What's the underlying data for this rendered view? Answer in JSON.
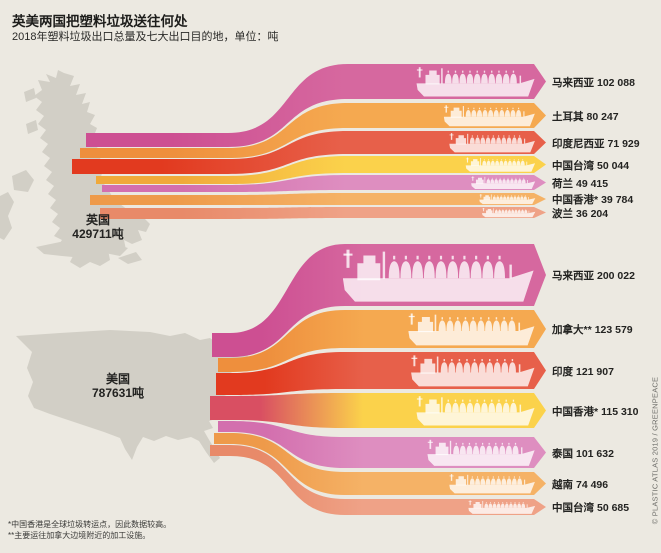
{
  "title": "英美两国把塑料垃圾送往何处",
  "subtitle": "2018年塑料垃圾出口总量及七大出口目的地，单位：吨",
  "footnotes": [
    "*中国香港是全球垃圾转运点，因此数据较高。",
    "**主要运往加拿大边境附近的加工设施。"
  ],
  "credit": "© PLASTIC ATLAS 2019 / GREENPEACE",
  "colors": {
    "background": "#ece9e1",
    "map": "#d2cfc6",
    "text": "#232321"
  },
  "chart_data": {
    "type": "sankey",
    "unit": "吨",
    "sources": [
      {
        "id": "uk",
        "name": "英国",
        "total": 429711,
        "total_label": "429711吨",
        "destinations": [
          {
            "id": "malaysia",
            "label": "马来西亚",
            "value": 102088,
            "value_label": "102 088",
            "color": "#d6689f",
            "color_deep": "#cd4f92"
          },
          {
            "id": "turkey",
            "label": "土耳其",
            "value": 80247,
            "value_label": "80 247",
            "color": "#f5a950",
            "color_deep": "#ee8f3d"
          },
          {
            "id": "indonesia",
            "label": "印度尼西亚",
            "value": 71929,
            "value_label": "71 929",
            "color": "#e7604a",
            "color_deep": "#e23a1f"
          },
          {
            "id": "taiwan-cn",
            "label": "中国台湾",
            "value": 50044,
            "value_label": "50 044",
            "color": "#fbd24b",
            "color_deep": "#f0a93a"
          },
          {
            "id": "netherlands",
            "label": "荷兰",
            "value": 49415,
            "value_label": "49 415",
            "color": "#de8ec0",
            "color_deep": "#d36fae"
          },
          {
            "id": "hong-kong-cn",
            "label": "中国香港*",
            "value": 39784,
            "value_label": "39 784",
            "color": "#f5b266",
            "color_deep": "#ee9a4a"
          },
          {
            "id": "poland",
            "label": "波兰",
            "value": 36204,
            "value_label": "36 204",
            "color": "#efa287",
            "color_deep": "#e88a69"
          }
        ]
      },
      {
        "id": "us",
        "name": "美国",
        "total": 787631,
        "total_label": "787631吨",
        "destinations": [
          {
            "id": "malaysia",
            "label": "马来西亚",
            "value": 200022,
            "value_label": "200 022",
            "color": "#d6689f",
            "color_deep": "#cd4f92"
          },
          {
            "id": "canada",
            "label": "加拿大**",
            "value": 123579,
            "value_label": "123 579",
            "color": "#f5a950",
            "color_deep": "#ee8f3d"
          },
          {
            "id": "india",
            "label": "印度",
            "value": 121907,
            "value_label": "121 907",
            "color": "#e7604a",
            "color_deep": "#e23a1f"
          },
          {
            "id": "hong-kong-cn",
            "label": "中国香港*",
            "value": 115310,
            "value_label": "115 310",
            "color": "#fbd24b",
            "color_deep": "#d94f62"
          },
          {
            "id": "thailand",
            "label": "泰国",
            "value": 101632,
            "value_label": "101 632",
            "color": "#de8ec0",
            "color_deep": "#d36fae"
          },
          {
            "id": "vietnam",
            "label": "越南",
            "value": 74496,
            "value_label": "74 496",
            "color": "#f5b266",
            "color_deep": "#ee9a4a"
          },
          {
            "id": "taiwan-cn",
            "label": "中国台湾",
            "value": 50685,
            "value_label": "50 685",
            "color": "#efa287",
            "color_deep": "#e88a69"
          }
        ]
      }
    ]
  }
}
